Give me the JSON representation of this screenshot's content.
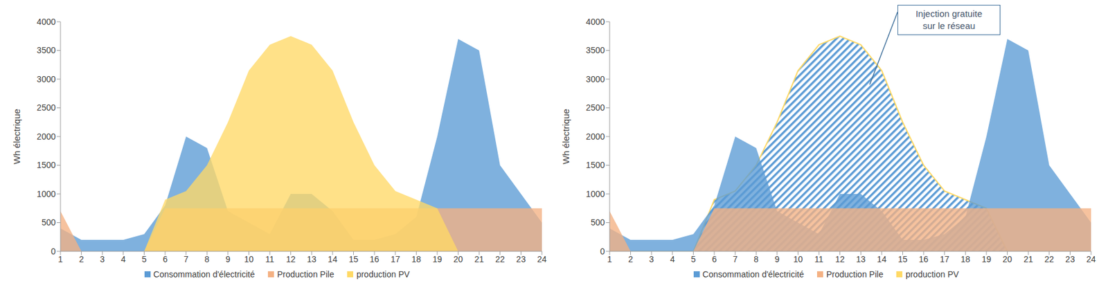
{
  "chart_data": [
    {
      "type": "area",
      "categories": [
        1,
        2,
        3,
        4,
        5,
        6,
        7,
        8,
        9,
        10,
        11,
        12,
        13,
        14,
        15,
        16,
        17,
        18,
        19,
        20,
        21,
        22,
        23,
        24
      ],
      "ylabel": "Wh électrique",
      "ylim": [
        0,
        4000
      ],
      "yticks": [
        0,
        500,
        1000,
        1500,
        2000,
        2500,
        3000,
        3500,
        4000
      ],
      "grid": false,
      "legend": "bottom",
      "series": [
        {
          "name": "Consommation d'électricité",
          "color": "#5B9BD5",
          "values": [
            400,
            200,
            200,
            200,
            300,
            800,
            2000,
            1800,
            700,
            500,
            300,
            1000,
            1000,
            700,
            200,
            200,
            300,
            600,
            2000,
            3700,
            3500,
            1500,
            1000,
            500
          ]
        },
        {
          "name": "Production Pile",
          "color": "#F4B183",
          "values": [
            700,
            0,
            0,
            0,
            0,
            750,
            750,
            750,
            750,
            750,
            750,
            750,
            750,
            750,
            750,
            750,
            750,
            750,
            750,
            750,
            750,
            750,
            750,
            750
          ]
        },
        {
          "name": "production PV",
          "color": "#FFD966",
          "values": [
            0,
            0,
            0,
            0,
            0,
            900,
            1050,
            1500,
            2250,
            3150,
            3600,
            3750,
            3600,
            3150,
            2250,
            1500,
            1050,
            900,
            750,
            0,
            0,
            0,
            0,
            0
          ]
        }
      ]
    },
    {
      "type": "area",
      "categories": [
        1,
        2,
        3,
        4,
        5,
        6,
        7,
        8,
        9,
        10,
        11,
        12,
        13,
        14,
        15,
        16,
        17,
        18,
        19,
        20,
        21,
        22,
        23,
        24
      ],
      "ylabel": "Wh électrique",
      "ylim": [
        0,
        4000
      ],
      "yticks": [
        0,
        500,
        1000,
        1500,
        2000,
        2500,
        3000,
        3500,
        4000
      ],
      "grid": false,
      "legend": "bottom",
      "annotation": "Injection gratuite\nsur le réseau",
      "series": [
        {
          "name": "Consommation d'électricité",
          "color": "#5B9BD5",
          "values": [
            400,
            200,
            200,
            200,
            300,
            800,
            2000,
            1800,
            700,
            500,
            300,
            1000,
            1000,
            700,
            200,
            200,
            300,
            600,
            2000,
            3700,
            3500,
            1500,
            1000,
            500
          ]
        },
        {
          "name": "Production Pile",
          "color": "#F4B183",
          "values": [
            700,
            0,
            0,
            0,
            0,
            750,
            750,
            750,
            750,
            750,
            750,
            750,
            750,
            750,
            750,
            750,
            750,
            750,
            750,
            750,
            750,
            750,
            750,
            750
          ]
        },
        {
          "name": "production PV",
          "color": "#FFD966",
          "values": [
            0,
            0,
            0,
            0,
            0,
            900,
            1050,
            1500,
            2250,
            3150,
            3600,
            3750,
            3600,
            3150,
            2250,
            1500,
            1050,
            900,
            750,
            0,
            0,
            0,
            0,
            0
          ]
        }
      ]
    }
  ]
}
